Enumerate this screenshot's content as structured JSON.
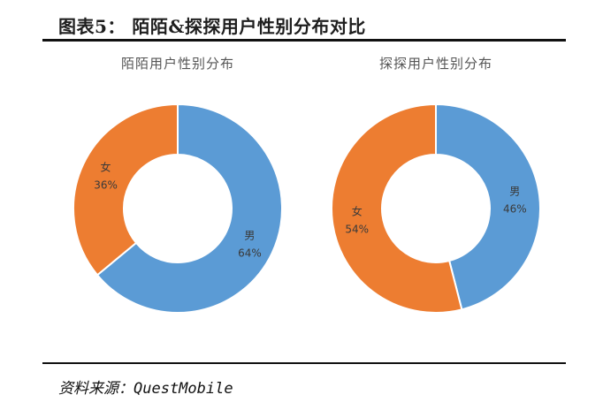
{
  "figure_title": "图表5：   陌陌&探探用户性别分布对比",
  "source_note": "资料来源：QuestMobile",
  "colors": {
    "male": "#5b9bd5",
    "female": "#ed7d31"
  },
  "chart_data": [
    {
      "type": "pie",
      "title": "陌陌用户性别分布",
      "categories": [
        "男",
        "女"
      ],
      "values": [
        64,
        36
      ],
      "value_labels": [
        "64%",
        "36%"
      ]
    },
    {
      "type": "pie",
      "title": "探探用户性别分布",
      "categories": [
        "男",
        "女"
      ],
      "values": [
        46,
        54
      ],
      "value_labels": [
        "46%",
        "54%"
      ]
    }
  ]
}
